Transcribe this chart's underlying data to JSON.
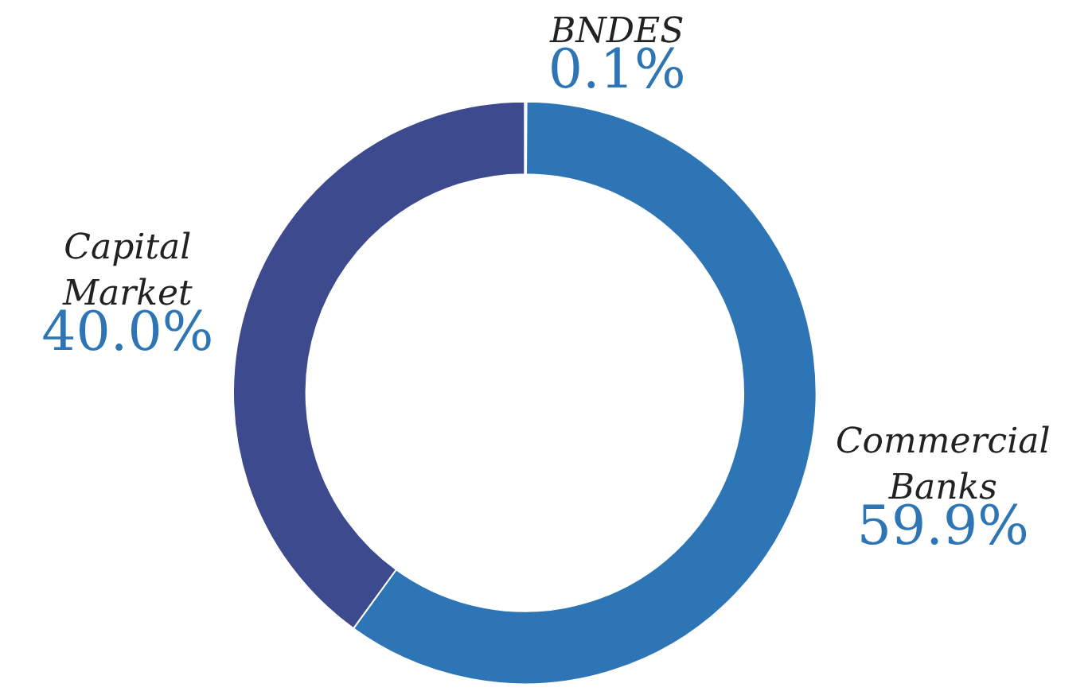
{
  "chart_data": {
    "type": "donut",
    "categories": [
      "BNDES",
      "Commercial Banks",
      "Capital Market"
    ],
    "values": [
      0.1,
      59.9,
      40.0
    ],
    "value_labels": [
      "0.1%",
      "59.9%",
      "40.0%"
    ],
    "colors": [
      "#1aa3e0",
      "#2e75b6",
      "#3d4a8e"
    ],
    "legend": false
  }
}
